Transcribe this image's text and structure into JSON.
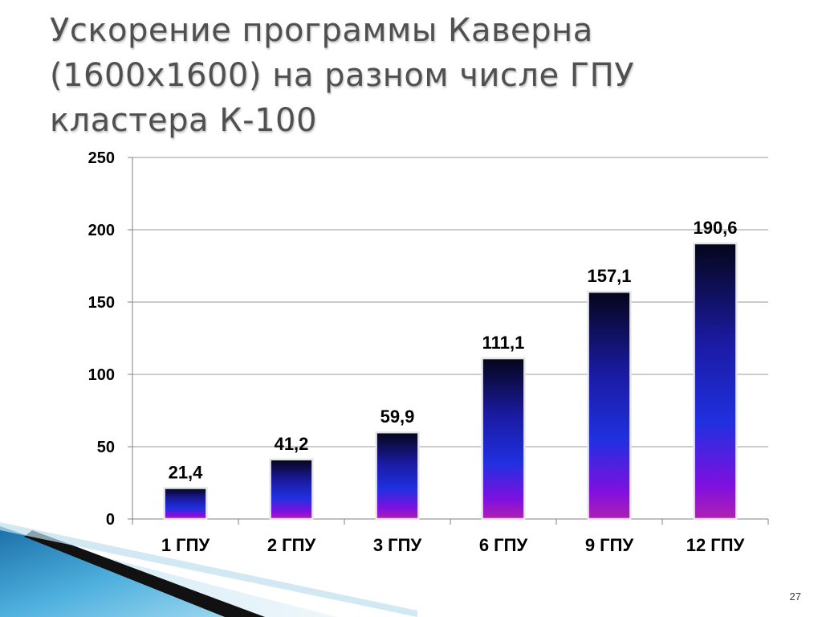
{
  "slide": {
    "title": "Ускорение программы Каверна\n(1600х1600) на разном числе ГПУ\nкластера К-100",
    "page_number": "27"
  },
  "chart_data": {
    "type": "bar",
    "title": "",
    "xlabel": "",
    "ylabel": "",
    "categories": [
      "1 ГПУ",
      "2 ГПУ",
      "3 ГПУ",
      "6 ГПУ",
      "9 ГПУ",
      "12 ГПУ"
    ],
    "values": [
      21.4,
      41.2,
      59.9,
      111.1,
      157.1,
      190.6
    ],
    "data_labels": [
      "21,4",
      "41,2",
      "59,9",
      "111,1",
      "157,1",
      "190,6"
    ],
    "ylim": [
      0,
      250
    ],
    "yticks": [
      0,
      50,
      100,
      150,
      200,
      250
    ],
    "grid": true,
    "legend": "none",
    "bar_gradient": [
      "#05051a",
      "#1a1aa0",
      "#2030e0",
      "#8010e0",
      "#b020b0"
    ]
  }
}
